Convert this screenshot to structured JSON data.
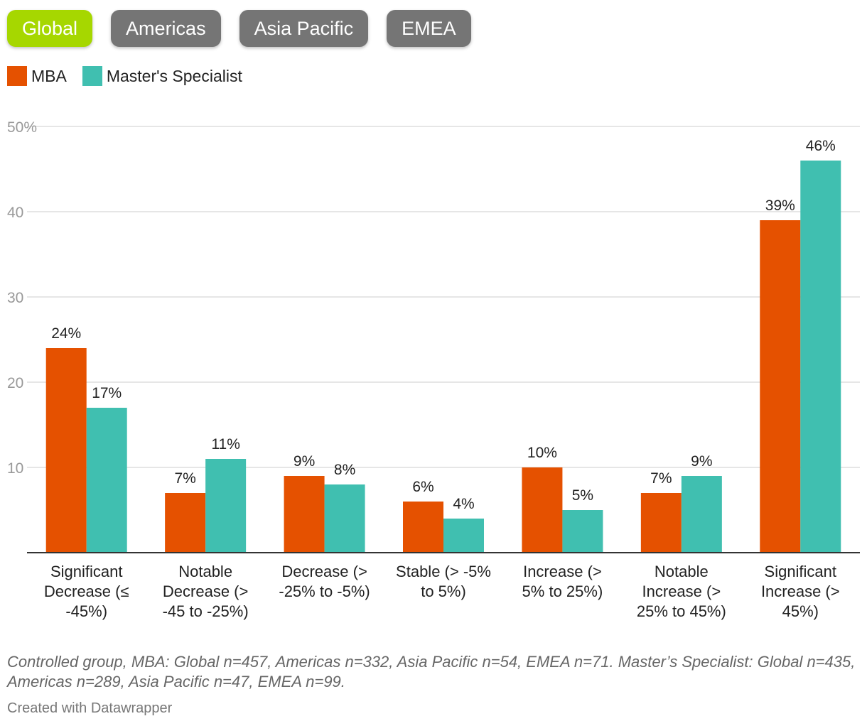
{
  "tabs": [
    {
      "label": "Global",
      "active": true
    },
    {
      "label": "Americas",
      "active": false
    },
    {
      "label": "Asia Pacific",
      "active": false
    },
    {
      "label": "EMEA",
      "active": false
    }
  ],
  "colors": {
    "tab_active": "#a6d700",
    "tab_inactive": "#757575",
    "mba": "#e55100",
    "specialist": "#40bfb0",
    "grid": "#dddddd",
    "baseline": "#333333",
    "tick_label": "#999999",
    "value_label": "#222222"
  },
  "chart_data": {
    "type": "bar",
    "categories": [
      [
        "Significant",
        "Decrease (≤",
        "-45%)"
      ],
      [
        "Notable",
        "Decrease (>",
        "-45 to -25%)"
      ],
      [
        "Decrease (>",
        "-25% to -5%)"
      ],
      [
        "Stable (> -5%",
        "to 5%)"
      ],
      [
        "Increase (>",
        "5% to 25%)"
      ],
      [
        "Notable",
        "Increase (>",
        "25% to 45%)"
      ],
      [
        "Significant",
        "Increase (>",
        "45%)"
      ]
    ],
    "series": [
      {
        "name": "MBA",
        "values": [
          24,
          7,
          9,
          6,
          10,
          7,
          39
        ],
        "labels": [
          "24%",
          "7%",
          "9%",
          "6%",
          "10%",
          "7%",
          "39%"
        ]
      },
      {
        "name": "Master's Specialist",
        "values": [
          17,
          11,
          8,
          4,
          5,
          9,
          46
        ],
        "labels": [
          "17%",
          "11%",
          "8%",
          "4%",
          "5%",
          "9%",
          "46%"
        ]
      }
    ],
    "yticks": [
      10,
      20,
      30,
      40,
      50
    ],
    "ytick_labels": [
      "10",
      "20",
      "30",
      "40",
      "50%"
    ],
    "ylim": [
      0,
      50
    ],
    "grid": true,
    "legend": "top-left"
  },
  "notes": "Controlled group, MBA: Global n=457, Americas n=332, Asia Pacific n=54, EMEA n=71. Master’s Specialist: Global n=435, Americas n=289, Asia Pacific n=47, EMEA n=99.",
  "credit": "Created with Datawrapper"
}
